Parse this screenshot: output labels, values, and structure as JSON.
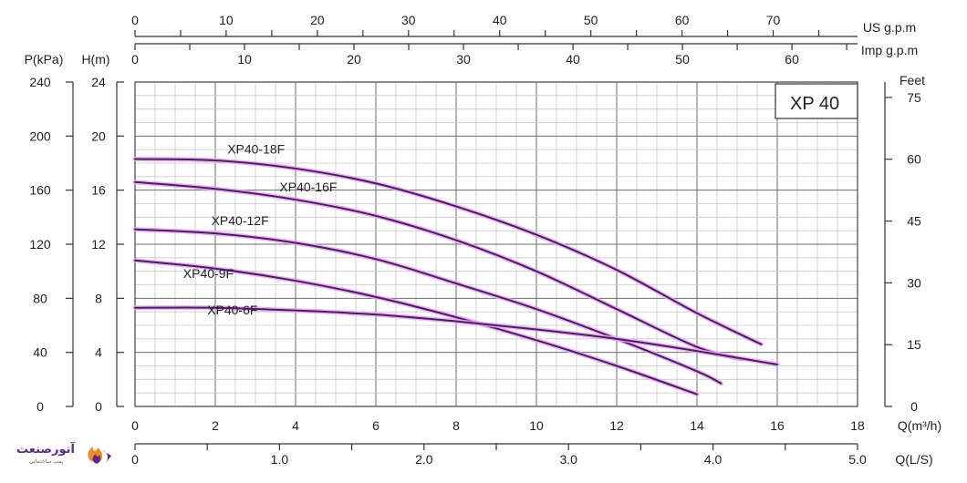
{
  "chart_data": {
    "type": "line",
    "title": "XP 40",
    "xlabel": "Q(m³/h)",
    "xlim": [
      0,
      18
    ],
    "x_ticks": [
      "0",
      "2",
      "4",
      "6",
      "8",
      "10",
      "12",
      "14",
      "16",
      "18"
    ],
    "ylabel": "H(m)",
    "ylim": [
      0,
      24
    ],
    "y_ticks": [
      "0",
      "4",
      "8",
      "12",
      "16",
      "20",
      "24"
    ],
    "axes": {
      "pressure": {
        "label": "P(kPa)",
        "ticks": [
          "0",
          "40",
          "80",
          "120",
          "160",
          "200",
          "240"
        ]
      },
      "feet": {
        "label": "Feet",
        "ticks": [
          "0",
          "15",
          "30",
          "45",
          "60",
          "75"
        ]
      },
      "us_gpm": {
        "label": "US  g.p.m",
        "ticks": [
          "0",
          "10",
          "20",
          "30",
          "40",
          "50",
          "60",
          "70"
        ]
      },
      "imp_gpm": {
        "label": "Imp  g.p.m",
        "ticks": [
          "0",
          "10",
          "20",
          "30",
          "40",
          "50",
          "60"
        ]
      },
      "ls": {
        "label": "Q(L/S)",
        "ticks": [
          "0",
          "1.0",
          "2.0",
          "3.0",
          "4.0",
          "5.0"
        ]
      }
    },
    "series": [
      {
        "name": "XP40-18F",
        "x": [
          0,
          2,
          4,
          6,
          8,
          10,
          12,
          14,
          15.6
        ],
        "y": [
          18.3,
          18.2,
          17.6,
          16.5,
          14.8,
          12.7,
          10.1,
          6.9,
          4.6
        ]
      },
      {
        "name": "XP40-16F",
        "x": [
          0,
          2,
          4,
          6,
          8,
          10,
          12,
          14,
          15.1
        ],
        "y": [
          16.6,
          16.1,
          15.3,
          14.1,
          12.3,
          10.0,
          7.2,
          4.4,
          3.5
        ]
      },
      {
        "name": "XP40-12F",
        "x": [
          0,
          2,
          4,
          6,
          8,
          10,
          12,
          14,
          14.6
        ],
        "y": [
          13.1,
          12.8,
          12.1,
          10.9,
          9.1,
          7.2,
          5.0,
          2.6,
          1.7
        ]
      },
      {
        "name": "XP40-9F",
        "x": [
          0,
          2,
          4,
          6,
          8,
          10,
          12,
          14
        ],
        "y": [
          10.8,
          10.2,
          9.3,
          8.1,
          6.6,
          4.9,
          3.0,
          0.9
        ]
      },
      {
        "name": "XP40-6F",
        "x": [
          0,
          2,
          4,
          6,
          8,
          10,
          12,
          14,
          16
        ],
        "y": [
          7.3,
          7.3,
          7.1,
          6.8,
          6.3,
          5.7,
          5.0,
          4.1,
          3.1
        ]
      }
    ]
  },
  "logo": {
    "text": "آتورصنعت",
    "subtext": "پمپ ساختمانی"
  },
  "colors": {
    "curve": "#4a1f62",
    "glow": "#e6a6ef",
    "logo_purple": "#5b2a86",
    "logo_orange": "#f08a24"
  }
}
